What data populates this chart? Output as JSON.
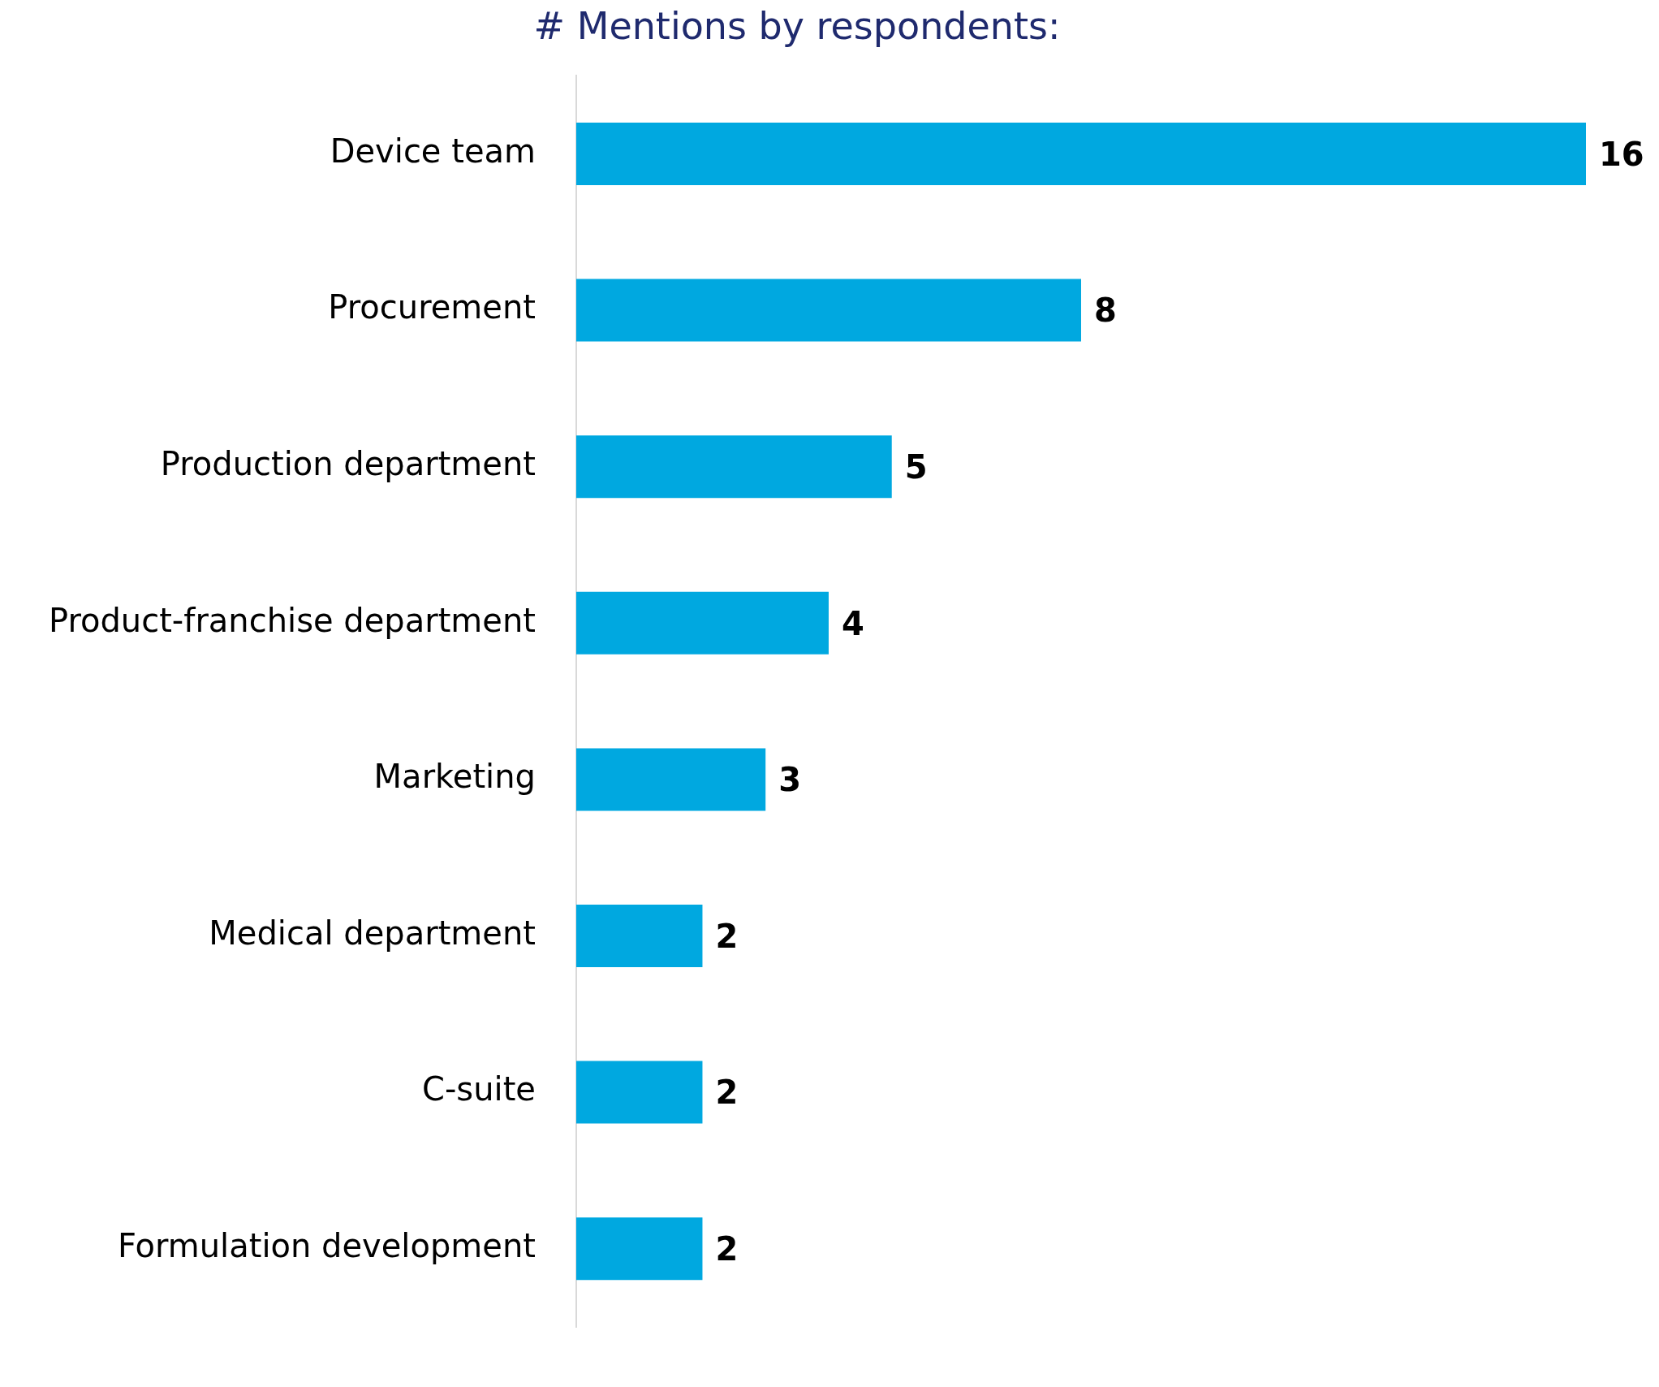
{
  "chart_data": {
    "type": "bar",
    "orientation": "horizontal",
    "title": "# Mentions by respondents:",
    "categories": [
      "Device team",
      "Procurement",
      "Production department",
      "Product-franchise department",
      "Marketing",
      "Medical department",
      "C-suite",
      "Formulation development"
    ],
    "values": [
      16,
      8,
      5,
      4,
      3,
      2,
      2,
      2
    ],
    "color": "#00a8e0",
    "data_labels": true,
    "legend": false
  }
}
